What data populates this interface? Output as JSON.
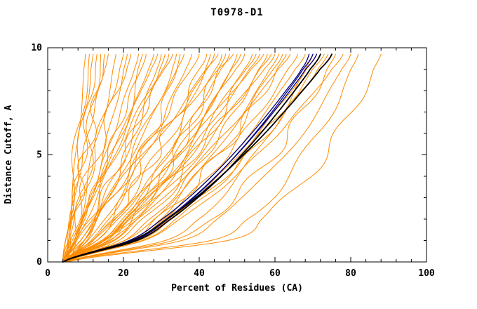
{
  "chart_data": {
    "type": "line",
    "title": "T0978-D1",
    "xlabel": "Percent of Residues (CA)",
    "ylabel": "Distance Cutoff, A",
    "xlim": [
      0,
      100
    ],
    "ylim": [
      0,
      10
    ],
    "x_major_ticks": [
      0,
      20,
      40,
      60,
      80,
      100
    ],
    "x_minor_step": 4,
    "y_major_ticks": [
      0,
      5,
      10
    ],
    "y_minor_step": 1,
    "legend": "none",
    "grid": false,
    "colors": {
      "orange": "#ff8c00",
      "blue": "#000080",
      "black": "#000000"
    },
    "series_note": "Each curve: percent of CA residues (x) under distance cutoff (y, Angstroms). Orange=server models, blue=selected models, black=best/reference models.",
    "y_levels": [
      0,
      1,
      2,
      3,
      4,
      5,
      6,
      7,
      8,
      9,
      9.7
    ],
    "curves": [
      {
        "c": "orange",
        "x": [
          5,
          5.5,
          6,
          6.5,
          7.1,
          7.6,
          8.1,
          8.6,
          9.1,
          9.6,
          10
        ]
      },
      {
        "c": "orange",
        "x": [
          5,
          5.5,
          6.1,
          6.7,
          7.4,
          8.2,
          8.9,
          9.7,
          10.6,
          11.4,
          12
        ]
      },
      {
        "c": "orange",
        "x": [
          4,
          5.3,
          6.3,
          7.3,
          8.2,
          9.1,
          10,
          10.8,
          11.6,
          12.4,
          13
        ]
      },
      {
        "c": "orange",
        "x": [
          5,
          6,
          7.1,
          8.1,
          9.1,
          10.2,
          11.2,
          12.2,
          13.3,
          14.3,
          15
        ]
      },
      {
        "c": "orange",
        "x": [
          4,
          4.8,
          5.8,
          6.9,
          8.1,
          9.4,
          10.7,
          12.1,
          13.5,
          15,
          16
        ]
      },
      {
        "c": "orange",
        "x": [
          5,
          6.9,
          8.4,
          9.8,
          11.1,
          12.4,
          13.6,
          14.9,
          16,
          17.2,
          18
        ]
      },
      {
        "c": "orange",
        "x": [
          4,
          5.6,
          7.3,
          8.9,
          10.6,
          12.2,
          13.9,
          15.6,
          17.2,
          18.8,
          20
        ]
      },
      {
        "c": "orange",
        "x": [
          5,
          6.1,
          7.6,
          9.1,
          10.9,
          12.7,
          14.6,
          16.5,
          18.5,
          20.5,
          22
        ]
      },
      {
        "c": "orange",
        "x": [
          4,
          6.9,
          9.2,
          11.4,
          13.4,
          15.4,
          17.3,
          19.2,
          21,
          22.8,
          24
        ]
      },
      {
        "c": "orange",
        "x": [
          5,
          7.2,
          9.3,
          11.5,
          13.7,
          15.8,
          18,
          20.2,
          22.3,
          24.5,
          26
        ]
      },
      {
        "c": "orange",
        "x": [
          4,
          4.7,
          5.4,
          6.2,
          6.9,
          7.6,
          8.3,
          9.1,
          9.8,
          10.5,
          11
        ]
      },
      {
        "c": "orange",
        "x": [
          6,
          7.2,
          8.1,
          9,
          9.8,
          10.6,
          11.3,
          12.1,
          12.8,
          13.5,
          14
        ]
      },
      {
        "c": "orange",
        "x": [
          4,
          7.5,
          10.3,
          12.9,
          15.3,
          17.7,
          20,
          22.2,
          24.4,
          26.5,
          28
        ]
      },
      {
        "c": "orange",
        "x": [
          5,
          10.1,
          13.3,
          16,
          18.4,
          20.7,
          22.9,
          24.9,
          26.9,
          28.7,
          30
        ]
      },
      {
        "c": "orange",
        "x": [
          4,
          8.1,
          11.3,
          14.3,
          17.2,
          19.9,
          22.6,
          25.2,
          27.8,
          30.3,
          32
        ]
      },
      {
        "c": "orange",
        "x": [
          5,
          10.9,
          14.6,
          17.8,
          20.6,
          23.2,
          25.7,
          28.1,
          30.4,
          32.5,
          34
        ]
      },
      {
        "c": "orange",
        "x": [
          4,
          8.6,
          12.4,
          15.8,
          19,
          22.2,
          25.3,
          28.3,
          31.2,
          34,
          36
        ]
      },
      {
        "c": "orange",
        "x": [
          5,
          11.7,
          15.9,
          19.5,
          22.7,
          25.8,
          28.6,
          31.3,
          33.9,
          36.3,
          38
        ]
      },
      {
        "c": "orange",
        "x": [
          4,
          9.2,
          13.4,
          17.3,
          20.9,
          24.5,
          27.9,
          31.3,
          34.6,
          37.8,
          40
        ]
      },
      {
        "c": "orange",
        "x": [
          5,
          12.5,
          17.2,
          21.3,
          24.9,
          28.3,
          31.4,
          34.4,
          37.4,
          40.1,
          42
        ]
      },
      {
        "c": "orange",
        "x": [
          4,
          6.6,
          9.2,
          11.7,
          14.3,
          16.9,
          19.5,
          22.1,
          24.6,
          27.2,
          29
        ]
      },
      {
        "c": "orange",
        "x": [
          5,
          6.8,
          9.2,
          11.8,
          14.7,
          17.6,
          20.7,
          23.9,
          27.2,
          30.6,
          33
        ]
      },
      {
        "c": "orange",
        "x": [
          4,
          12.2,
          17.2,
          21.6,
          25.5,
          29.2,
          32.6,
          35.8,
          39,
          42,
          44
        ]
      },
      {
        "c": "orange",
        "x": [
          5,
          16.8,
          22.2,
          26.5,
          30.2,
          33.5,
          36.5,
          39.3,
          41.9,
          44.4,
          46
        ]
      },
      {
        "c": "orange",
        "x": [
          4,
          13,
          18.6,
          23.4,
          27.6,
          31.7,
          35.4,
          39,
          42.5,
          45.8,
          48
        ]
      },
      {
        "c": "orange",
        "x": [
          5,
          17.9,
          23.9,
          28.6,
          32.6,
          36.2,
          39.6,
          42.6,
          45.5,
          48.2,
          50
        ]
      },
      {
        "c": "orange",
        "x": [
          4,
          13.8,
          19.9,
          25.1,
          29.8,
          34.2,
          38.3,
          42.2,
          46,
          49.6,
          52
        ]
      },
      {
        "c": "orange",
        "x": [
          5,
          19.1,
          25.5,
          30.7,
          35.1,
          39,
          42.6,
          46,
          49.1,
          52,
          54
        ]
      },
      {
        "c": "orange",
        "x": [
          4,
          14.6,
          21.2,
          26.9,
          31.9,
          36.7,
          41.1,
          45.4,
          49.5,
          53.3,
          56
        ]
      },
      {
        "c": "orange",
        "x": [
          5,
          20.2,
          27.2,
          32.8,
          37.5,
          41.8,
          45.7,
          49.3,
          52.7,
          55.9,
          58
        ]
      },
      {
        "c": "orange",
        "x": [
          4,
          15.4,
          22.5,
          28.6,
          34.1,
          39.2,
          44,
          48.6,
          53,
          57.1,
          60
        ]
      },
      {
        "c": "orange",
        "x": [
          5,
          21.4,
          28.9,
          34.9,
          40,
          44.6,
          48.8,
          52.7,
          56.3,
          59.7,
          62
        ]
      },
      {
        "c": "orange",
        "x": [
          4,
          16.2,
          23.9,
          30.4,
          36.2,
          41.7,
          46.8,
          51.8,
          56.5,
          60.9,
          64
        ]
      },
      {
        "c": "orange",
        "x": [
          5,
          22.5,
          30.6,
          37,
          42.5,
          47.3,
          51.8,
          55.9,
          59.9,
          63.6,
          66
        ]
      },
      {
        "c": "orange",
        "x": [
          4,
          16.3,
          22,
          26.5,
          30.4,
          33.8,
          37,
          39.9,
          42.7,
          45.3,
          47
        ]
      },
      {
        "c": "orange",
        "x": [
          5,
          15.2,
          21.6,
          27,
          31.9,
          36.5,
          40.7,
          44.8,
          48.8,
          52.5,
          55
        ]
      },
      {
        "c": "orange",
        "x": [
          4,
          20.4,
          27.9,
          33.9,
          39,
          43.6,
          47.8,
          51.7,
          55.3,
          58.7,
          61
        ]
      },
      {
        "c": "orange",
        "x": [
          5,
          14.4,
          20.2,
          25.2,
          29.7,
          33.9,
          37.8,
          41.6,
          45.2,
          48.7,
          51
        ]
      },
      {
        "c": "orange",
        "x": [
          4,
          15.2,
          22.2,
          28.2,
          33.5,
          38.6,
          43.3,
          47.8,
          52.1,
          56.2,
          59
        ]
      },
      {
        "c": "orange",
        "x": [
          5,
          21.6,
          29.3,
          35.4,
          40.6,
          45.3,
          49.5,
          53.5,
          57.2,
          60.7,
          63
        ]
      },
      {
        "c": "orange",
        "x": [
          4,
          22.4,
          30.8,
          37.5,
          43.3,
          48.4,
          53.2,
          57.5,
          61.6,
          65.4,
          68
        ]
      },
      {
        "c": "orange",
        "x": [
          5,
          31.2,
          39.5,
          45.6,
          50.6,
          54.9,
          58.6,
          62.1,
          65.2,
          68.1,
          70
        ]
      },
      {
        "c": "orange",
        "x": [
          4,
          23.8,
          32.9,
          40.2,
          46.4,
          51.9,
          57,
          61.7,
          66.1,
          70.2,
          73
        ]
      },
      {
        "c": "orange",
        "x": [
          5,
          33.6,
          42.7,
          49.4,
          54.8,
          59.5,
          63.6,
          67.3,
          70.7,
          73.9,
          76
        ]
      },
      {
        "c": "orange",
        "x": [
          4,
          25.2,
          35,
          42.8,
          49.4,
          55.4,
          60.8,
          65.9,
          70.6,
          75,
          78
        ]
      },
      {
        "c": "orange",
        "x": [
          5,
          35.2,
          44.8,
          51.9,
          57.6,
          62.5,
          66.9,
          70.9,
          74.5,
          77.8,
          80
        ]
      },
      {
        "c": "orange",
        "x": [
          4,
          43.5,
          52.6,
          58.8,
          63.7,
          67.9,
          71.5,
          74.7,
          77.6,
          80.3,
          82
        ]
      },
      {
        "c": "orange",
        "x": [
          5,
          47,
          56.7,
          63.3,
          68.6,
          73,
          76.9,
          80.3,
          83.4,
          86.2,
          88
        ]
      },
      {
        "c": "orange",
        "x": [
          4,
          23.2,
          32.1,
          39.1,
          45.1,
          50.5,
          55.4,
          60,
          64.3,
          68.3,
          71
        ]
      },
      {
        "c": "orange",
        "x": [
          5,
          24.8,
          33.9,
          41.2,
          47.4,
          52.9,
          58,
          62.7,
          67.1,
          71.2,
          74
        ]
      },
      {
        "c": "orange",
        "x": [
          4,
          8.2,
          12.4,
          16.7,
          20.9,
          25.1,
          29.4,
          33.6,
          37.8,
          42,
          45
        ]
      },
      {
        "c": "orange",
        "x": [
          5,
          7.9,
          11.6,
          15.7,
          20.2,
          24.8,
          29.7,
          34.7,
          39.9,
          45.2,
          49
        ]
      },
      {
        "c": "orange",
        "x": [
          4,
          11.7,
          17.8,
          23.5,
          28.9,
          34.1,
          39.2,
          44.1,
          48.9,
          53.7,
          57
        ]
      },
      {
        "c": "orange",
        "x": [
          5,
          15.9,
          20.9,
          24.9,
          28.3,
          31.4,
          34.2,
          36.8,
          39.2,
          41.5,
          43
        ]
      },
      {
        "c": "orange",
        "x": [
          4,
          12.9,
          17,
          20.2,
          23,
          25.5,
          27.8,
          29.9,
          31.9,
          33.8,
          35
        ]
      },
      {
        "c": "orange",
        "x": [
          5,
          9.1,
          11.6,
          13.8,
          15.7,
          17.6,
          19.3,
          20.9,
          22.5,
          24,
          25
        ]
      },
      {
        "c": "orange",
        "x": [
          4,
          7.5,
          9.6,
          11.5,
          13.1,
          14.7,
          16.1,
          17.5,
          18.9,
          20.1,
          21
        ]
      },
      {
        "c": "orange",
        "x": [
          6,
          9.6,
          12.5,
          15.2,
          17.8,
          20.2,
          22.6,
          25,
          27.2,
          29.5,
          31
        ]
      },
      {
        "c": "blue",
        "x": [
          4,
          22.9,
          31.7,
          38.6,
          44.5,
          49.8,
          54.7,
          59.2,
          63.4,
          67.4,
          70
        ]
      },
      {
        "c": "blue",
        "x": [
          4,
          22.5,
          31.3,
          38.3,
          44.4,
          49.9,
          54.9,
          59.6,
          64,
          68.1,
          71
        ]
      },
      {
        "c": "blue",
        "x": [
          4,
          21.5,
          30.2,
          37.2,
          43.3,
          48.8,
          53.8,
          58.5,
          62.9,
          67,
          69
        ]
      },
      {
        "c": "black",
        "x": [
          4,
          23.5,
          32.5,
          39.6,
          45.8,
          51.2,
          56.2,
          60.8,
          65.2,
          69.3,
          72
        ]
      },
      {
        "c": "black",
        "x": [
          4,
          22.2,
          31.5,
          39.1,
          45.7,
          51.7,
          57.3,
          62.4,
          67.3,
          71.9,
          75
        ]
      }
    ]
  }
}
